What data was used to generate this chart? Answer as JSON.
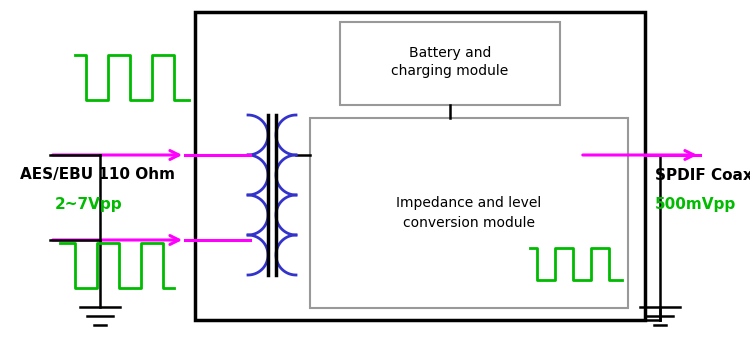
{
  "bg_color": "#ffffff",
  "box_color": "#000000",
  "green_color": "#00bb00",
  "blue_color": "#3333cc",
  "magenta_color": "#ff00ff",
  "gray_color": "#999999",
  "text_color": "#000000",
  "figsize": [
    7.5,
    3.5
  ],
  "dpi": 100,
  "label_left_line1": "AES/EBU 110 Ohm",
  "label_left_line2": "2~7Vpp",
  "label_right_line1": "SPDIF Coaxial",
  "label_right_line2": "500mVpp",
  "inner_text_line1": "Impedance and level",
  "inner_text_line2": "conversion module",
  "battery_text_line1": "Battery and",
  "battery_text_line2": "charging module"
}
